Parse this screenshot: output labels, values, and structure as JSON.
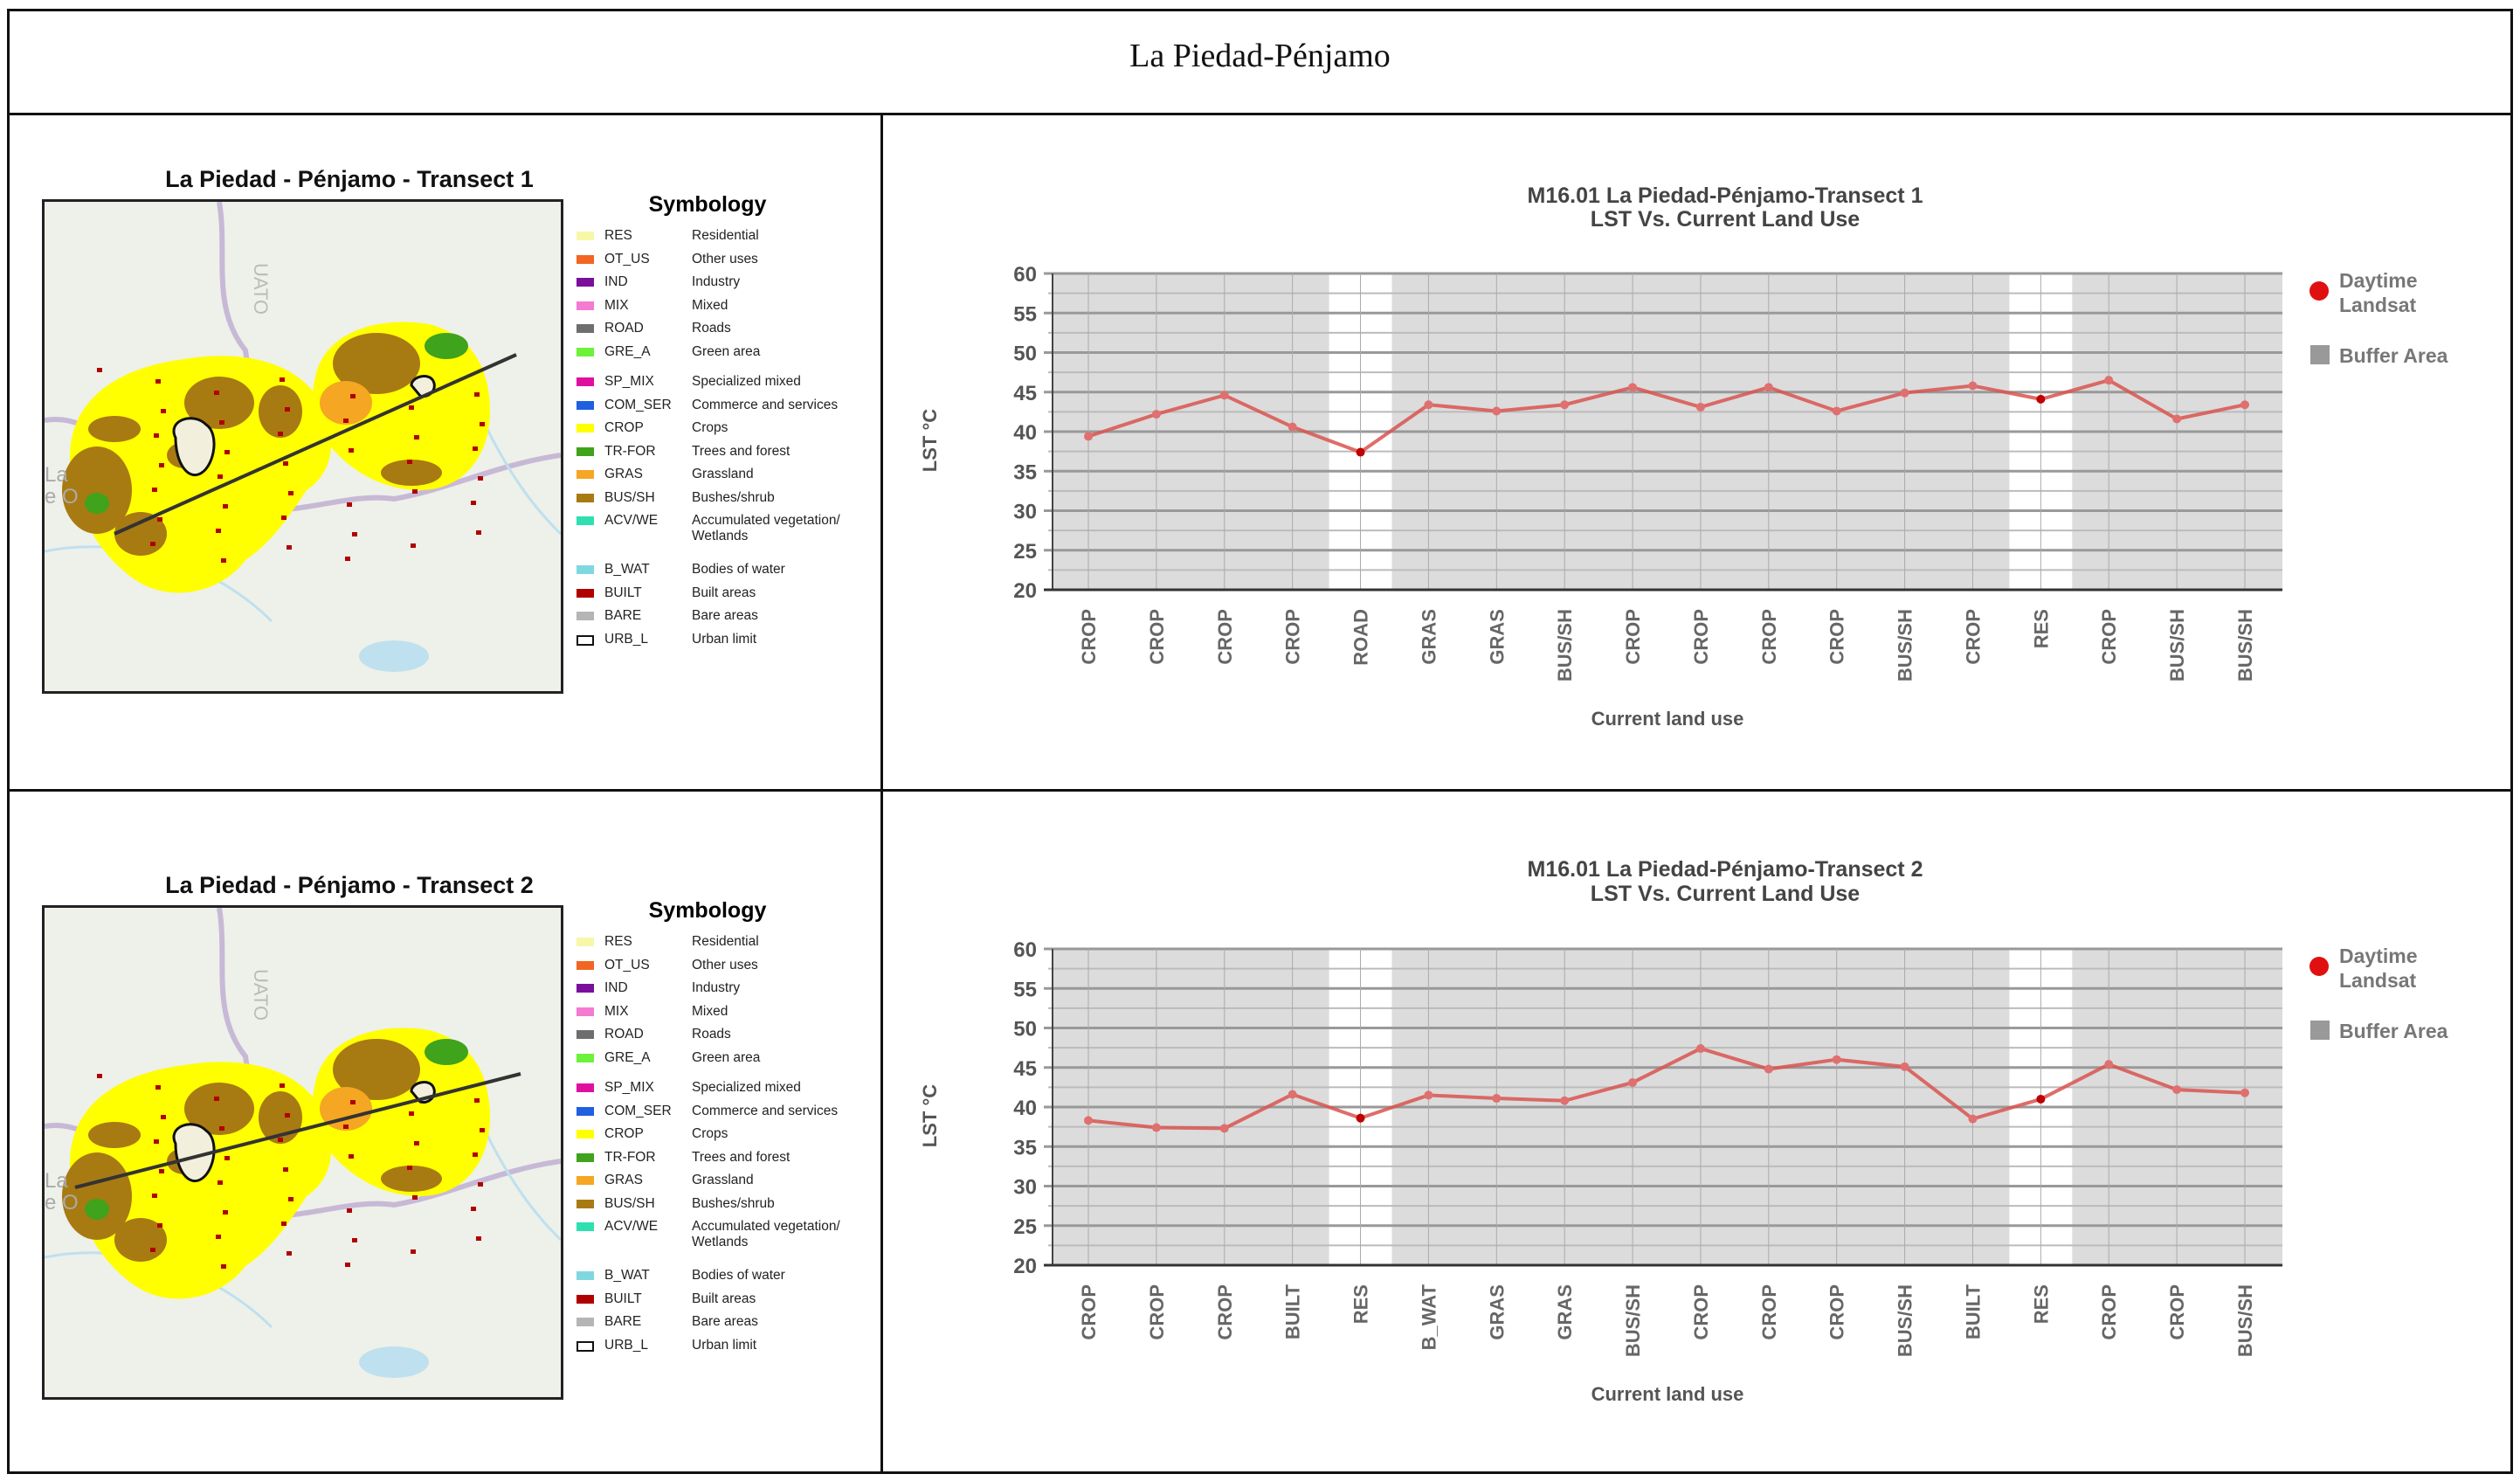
{
  "header": {
    "title": "La Piedad-Pénjamo"
  },
  "panels": [
    {
      "map_title": "La Piedad - Pénjamo - Transect 1",
      "map_label": "UATO",
      "map_label2": "La",
      "map_label3": "e O"
    },
    {
      "map_title": "La Piedad - Pénjamo - Transect 2",
      "map_label": "UATO",
      "map_label2": "La",
      "map_label3": "e O"
    }
  ],
  "symbology": {
    "title": "Symbology",
    "items": [
      {
        "code": "RES",
        "label": "Residential",
        "color": "#f7f7a8"
      },
      {
        "code": "OT_US",
        "label": "Other uses",
        "color": "#f26522"
      },
      {
        "code": "IND",
        "label": "Industry",
        "color": "#7a0f9c"
      },
      {
        "code": "MIX",
        "label": "Mixed",
        "color": "#f47ad2"
      },
      {
        "code": "ROAD",
        "label": "Roads",
        "color": "#6e6e6e"
      },
      {
        "code": "GRE_A",
        "label": "Green area",
        "color": "#6cf23a"
      },
      {
        "code": "SP_MIX",
        "label": "Specialized mixed",
        "color": "#e0109f"
      },
      {
        "code": "COM_SER",
        "label": "Commerce and services",
        "color": "#1f5fe0"
      },
      {
        "code": "CROP",
        "label": "Crops",
        "color": "#ffff00"
      },
      {
        "code": "TR-FOR",
        "label": "Trees and forest",
        "color": "#3fa31c"
      },
      {
        "code": "GRAS",
        "label": "Grassland",
        "color": "#f5a623"
      },
      {
        "code": "BUS/SH",
        "label": "Bushes/shrub",
        "color": "#a87a12"
      },
      {
        "code": "ACV/WE",
        "label": "Accumulated vegetation/ Wetlands",
        "color": "#2ee0b0"
      },
      {
        "code": "B_WAT",
        "label": "Bodies of water",
        "color": "#7fd8e0"
      },
      {
        "code": "BUILT",
        "label": "Built areas",
        "color": "#b00000"
      },
      {
        "code": "BARE",
        "label": "Bare areas",
        "color": "#b5b5b5"
      },
      {
        "code": "URB_L",
        "label": "Urban limit",
        "color": "outline"
      }
    ]
  },
  "chart_data": [
    {
      "type": "line",
      "title": "M16.01 La Piedad-Pénjamo-Transect 1",
      "subtitle": "LST Vs. Current Land Use",
      "xlabel": "Current land use",
      "ylabel": "LST °C",
      "ylim": [
        20,
        60
      ],
      "yticks": [
        20,
        25,
        30,
        35,
        40,
        45,
        50,
        55,
        60
      ],
      "grid": true,
      "legend_position": "right",
      "categories": [
        "CROP",
        "CROP",
        "CROP",
        "CROP",
        "ROAD",
        "GRAS",
        "GRAS",
        "BUS/SH",
        "CROP",
        "CROP",
        "CROP",
        "CROP",
        "BUS/SH",
        "CROP",
        "RES",
        "CROP",
        "BUS/SH",
        "BUS/SH"
      ],
      "series": [
        {
          "name": "Daytime Landsat",
          "color": "#d9534f",
          "values": [
            39.4,
            42.2,
            44.6,
            40.6,
            37.4,
            43.4,
            42.6,
            43.4,
            45.6,
            43.1,
            45.6,
            42.6,
            44.9,
            45.8,
            44.1,
            46.5,
            41.6,
            43.4
          ]
        }
      ],
      "buffer_area": {
        "name": "Buffer Area",
        "color": "#dcdcdc",
        "in_buffer": [
          true,
          true,
          true,
          true,
          false,
          true,
          true,
          true,
          true,
          true,
          true,
          true,
          true,
          true,
          false,
          true,
          true,
          true
        ]
      }
    },
    {
      "type": "line",
      "title": "M16.01 La Piedad-Pénjamo-Transect 2",
      "subtitle": "LST Vs. Current Land Use",
      "xlabel": "Current land use",
      "ylabel": "LST °C",
      "ylim": [
        20,
        60
      ],
      "yticks": [
        20,
        25,
        30,
        35,
        40,
        45,
        50,
        55,
        60
      ],
      "grid": true,
      "legend_position": "right",
      "categories": [
        "CROP",
        "CROP",
        "CROP",
        "BUILT",
        "RES",
        "B_WAT",
        "GRAS",
        "GRAS",
        "BUS/SH",
        "CROP",
        "CROP",
        "CROP",
        "BUS/SH",
        "BUILT",
        "RES",
        "CROP",
        "CROP",
        "BUS/SH"
      ],
      "series": [
        {
          "name": "Daytime Landsat",
          "color": "#d9534f",
          "values": [
            38.3,
            37.4,
            37.3,
            41.6,
            38.6,
            41.5,
            41.1,
            40.8,
            43.1,
            47.4,
            44.8,
            46.0,
            45.1,
            38.5,
            41.0,
            45.4,
            42.2,
            41.8
          ]
        }
      ],
      "buffer_area": {
        "name": "Buffer Area",
        "color": "#dcdcdc",
        "in_buffer": [
          true,
          true,
          true,
          true,
          false,
          true,
          true,
          true,
          true,
          true,
          true,
          true,
          true,
          true,
          false,
          true,
          true,
          true
        ]
      }
    }
  ]
}
